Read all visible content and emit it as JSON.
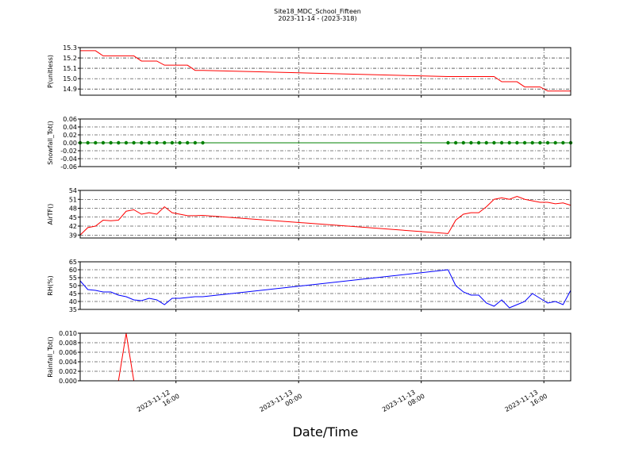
{
  "chart_data": [
    {
      "type": "line",
      "title": "Site18_MDC_School_Fifteen",
      "subtitle": "2023-11-14 - (2023-318)",
      "ylabel": "P(unitless)",
      "color": "#ff0000",
      "grid": true,
      "ylim": [
        14.84,
        15.3
      ],
      "yticks": [
        14.9,
        {
          "value": 15,
          "label": "15.0"
        },
        15.1,
        15.2,
        15.3
      ],
      "values": [
        15.27,
        15.27,
        15.27,
        15.22,
        15.22,
        15.22,
        15.22,
        15.22,
        15.17,
        15.17,
        15.17,
        15.13,
        15.13,
        15.13,
        15.13,
        15.08,
        15.08,
        15.02,
        15.02,
        15.02,
        15.02,
        15.02,
        15.02,
        15.02,
        14.97,
        14.97,
        14.97,
        14.92,
        14.92,
        14.92,
        14.88,
        14.88,
        14.88,
        14.88
      ]
    },
    {
      "type": "line",
      "ylabel": "Snowfall_Tot()",
      "color": "#008000",
      "marker": "o",
      "grid": true,
      "ylim": [
        -0.06,
        0.06
      ],
      "yticks": [
        -0.06,
        -0.04,
        -0.02,
        {
          "value": 0,
          "label": "0.00"
        },
        0.02,
        0.04,
        0.06
      ],
      "values": [
        0,
        0,
        0,
        0,
        0,
        0,
        0,
        0,
        0,
        0,
        0,
        0,
        0,
        0,
        0,
        0,
        0,
        0,
        0,
        0,
        0,
        0,
        0,
        0,
        0,
        0,
        0,
        0,
        0,
        0,
        0,
        0,
        0,
        0
      ]
    },
    {
      "type": "line",
      "ylabel": "AirTF()",
      "color": "#ff0000",
      "grid": true,
      "ylim": [
        38,
        54
      ],
      "yticks": [
        39,
        42,
        45,
        48,
        51,
        54
      ],
      "values": [
        39,
        41.5,
        42,
        44,
        43.8,
        44,
        47,
        47.5,
        46,
        46.5,
        46,
        48.5,
        46.5,
        46,
        45.5,
        45.5,
        45.6,
        39.5,
        44,
        46,
        46.5,
        46.5,
        48.5,
        51,
        51.5,
        51,
        52,
        51,
        50.5,
        50,
        50,
        49.5,
        49.8,
        49
      ]
    },
    {
      "type": "line",
      "ylabel": "RH(%)",
      "color": "#0000ff",
      "grid": true,
      "ylim": [
        35,
        65
      ],
      "yticks": [
        35,
        40,
        45,
        50,
        55,
        60,
        65
      ],
      "values": [
        53,
        47.5,
        47,
        46,
        46,
        44,
        43,
        41,
        40.5,
        42,
        41,
        38,
        42,
        42,
        42.5,
        43,
        43,
        60,
        50,
        46,
        44,
        44,
        39,
        37,
        41,
        36,
        38,
        40,
        45,
        42,
        39,
        40,
        38,
        47
      ]
    },
    {
      "type": "line",
      "ylabel": "Rainfall_Tot()",
      "xlabel": "Date/Time",
      "color": "#ff0000",
      "grid": true,
      "ylim": [
        0,
        0.01
      ],
      "yticks": [
        {
          "value": 0,
          "label": "0.000"
        },
        0.002,
        0.004,
        0.006,
        0.008,
        {
          "value": 0.01,
          "label": "0.010"
        }
      ],
      "values": [
        0,
        0,
        0,
        0,
        0,
        0,
        0.01,
        0,
        0,
        0,
        0,
        0,
        0,
        0,
        0,
        0,
        0,
        0,
        0,
        0,
        0,
        0,
        0,
        0,
        0,
        0,
        0,
        0,
        0,
        0,
        0,
        0,
        0,
        0
      ],
      "xlim": [
        "2023-11-12 09:45",
        "2023-11-13 17:45"
      ],
      "xticks": [
        {
          "value": "2023-11-12 16:00",
          "label": "2023-11-12\n16:00"
        },
        {
          "value": "2023-11-13 00:00",
          "label": "2023-11-13\n00:00"
        },
        {
          "value": "2023-11-13 08:00",
          "label": "2023-11-13\n08:00"
        },
        {
          "value": "2023-11-13 16:00",
          "label": "2023-11-13\n16:00"
        }
      ],
      "x": [
        "2023-11-12 09:45",
        "2023-11-12 10:15",
        "2023-11-12 10:45",
        "2023-11-12 11:15",
        "2023-11-12 11:45",
        "2023-11-12 12:15",
        "2023-11-12 12:45",
        "2023-11-12 13:15",
        "2023-11-12 13:45",
        "2023-11-12 14:15",
        "2023-11-12 14:45",
        "2023-11-12 15:15",
        "2023-11-12 15:45",
        "2023-11-12 16:15",
        "2023-11-12 16:45",
        "2023-11-12 17:15",
        "2023-11-12 17:45",
        "2023-11-13 09:45",
        "2023-11-13 10:15",
        "2023-11-13 10:45",
        "2023-11-13 11:15",
        "2023-11-13 11:45",
        "2023-11-13 12:15",
        "2023-11-13 12:45",
        "2023-11-13 13:15",
        "2023-11-13 13:45",
        "2023-11-13 14:15",
        "2023-11-13 14:45",
        "2023-11-13 15:15",
        "2023-11-13 15:45",
        "2023-11-13 16:15",
        "2023-11-13 16:45",
        "2023-11-13 17:15",
        "2023-11-13 17:45"
      ]
    }
  ]
}
